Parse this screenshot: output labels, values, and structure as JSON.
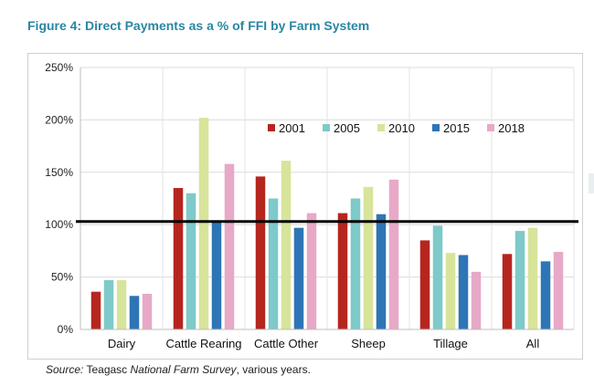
{
  "header": {
    "figure_title": "Figure 4: Direct Payments as a % of FFI by Farm System"
  },
  "source": {
    "label": "Source:",
    "part1": " Teagasc ",
    "publication": "National Farm Survey",
    "part2": ", various years."
  },
  "chart_data": {
    "type": "bar",
    "categories": [
      "Dairy",
      "Cattle Rearing",
      "Cattle Other",
      "Sheep",
      "Tillage",
      "All"
    ],
    "series": [
      {
        "name": "2001",
        "color": "#b5261e",
        "values": [
          36,
          135,
          146,
          111,
          85,
          72
        ]
      },
      {
        "name": "2005",
        "color": "#7ec9c9",
        "values": [
          47,
          130,
          125,
          125,
          99,
          94
        ]
      },
      {
        "name": "2010",
        "color": "#d7e49a",
        "values": [
          47,
          202,
          161,
          136,
          73,
          97
        ]
      },
      {
        "name": "2015",
        "color": "#2e75b6",
        "values": [
          32,
          102,
          97,
          110,
          71,
          65
        ]
      },
      {
        "name": "2018",
        "color": "#e7a9c7",
        "values": [
          34,
          158,
          111,
          143,
          55,
          74
        ]
      }
    ],
    "ylim": [
      0,
      250
    ],
    "yticks": [
      0,
      50,
      100,
      150,
      200,
      250
    ],
    "ytick_labels": [
      "0%",
      "50%",
      "100%",
      "150%",
      "200%",
      "250%"
    ],
    "reference_line": 103,
    "legend_placement": "top-center",
    "grid": "horizontal"
  }
}
